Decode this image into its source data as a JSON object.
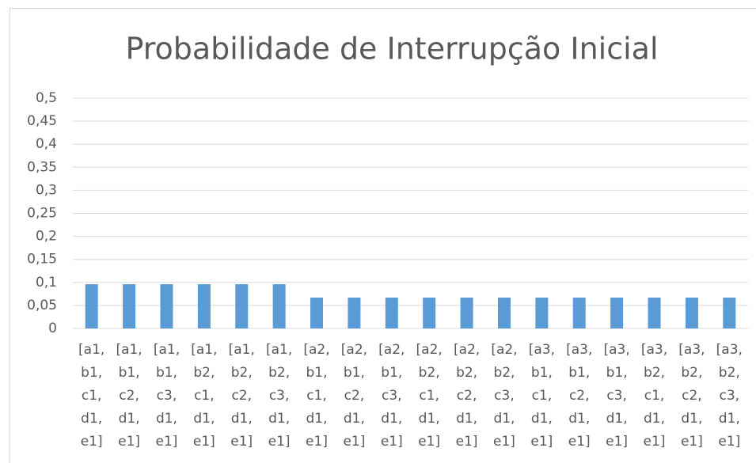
{
  "chart_data": {
    "type": "bar",
    "title": "Probabilidade de Interrupção Inicial",
    "categories": [
      "[a1, b1, c1, d1, e1]",
      "[a1, b1, c2, d1, e1]",
      "[a1, b1, c3, d1, e1]",
      "[a1, b2, c1, d1, e1]",
      "[a1, b2, c2, d1, e1]",
      "[a1, b2, c3, d1, e1]",
      "[a2, b1, c1, d1, e1]",
      "[a2, b1, c2, d1, e1]",
      "[a2, b1, c3, d1, e1]",
      "[a2, b2, c1, d1, e1]",
      "[a2, b2, c2, d1, e1]",
      "[a2, b2, c3, d1, e1]",
      "[a3, b1, c1, d1, e1]",
      "[a3, b1, c2, d1, e1]",
      "[a3, b1, c3, d1, e1]",
      "[a3, b2, c1, d1, e1]",
      "[a3, b2, c2, d1, e1]",
      "[a3, b2, c3, d1, e1]"
    ],
    "values": [
      0.096,
      0.096,
      0.096,
      0.096,
      0.096,
      0.096,
      0.067,
      0.067,
      0.067,
      0.067,
      0.067,
      0.067,
      0.067,
      0.067,
      0.067,
      0.067,
      0.067,
      0.067
    ],
    "color": "#5b9bd5",
    "ylim": [
      0,
      0.5
    ],
    "yticks": [
      0,
      {
        "value": 0.05,
        "label": "0,05"
      },
      {
        "value": 0.1,
        "label": "0,1"
      },
      {
        "value": 0.15,
        "label": "0,15"
      },
      {
        "value": 0.2,
        "label": "0,2"
      },
      {
        "value": 0.25,
        "label": "0,25"
      },
      {
        "value": 0.3,
        "label": "0,3"
      },
      {
        "value": 0.35,
        "label": "0,35"
      },
      {
        "value": 0.4,
        "label": "0,4"
      },
      {
        "value": 0.45,
        "label": "0,45"
      },
      {
        "value": 0.5,
        "label": "0,5"
      }
    ],
    "grid": true
  }
}
